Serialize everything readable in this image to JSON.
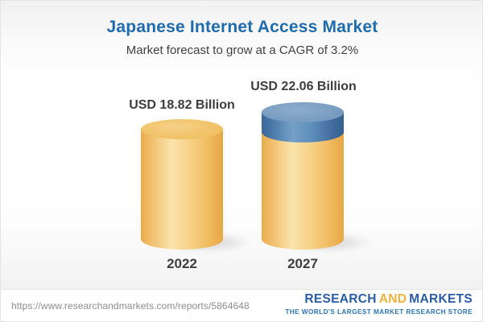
{
  "header": {
    "title": "Japanese Internet Access Market",
    "subtitle": "Market forecast to grow at a CAGR of 3.2%"
  },
  "chart_data": {
    "type": "bar",
    "style": "3d-cylinder",
    "title": "Japanese Internet Access Market",
    "subtitle": "Market forecast to grow at a CAGR of 3.2%",
    "unit": "USD Billion",
    "cagr_percent": 3.2,
    "categories": [
      "2022",
      "2027"
    ],
    "values": [
      18.82,
      22.06
    ],
    "bars": [
      {
        "year": "2022",
        "value": 18.82,
        "value_label": "USD 18.82 Billion",
        "segments": [
          "base"
        ]
      },
      {
        "year": "2027",
        "value": 22.06,
        "value_label": "USD 22.06 Billion",
        "segments": [
          "base",
          "growth"
        ]
      }
    ],
    "colors": {
      "base_fill": "#f3c96e",
      "growth_fill": "#5e8fbd",
      "title_text": "#1e6bad",
      "label_text": "#3d3d3d"
    },
    "legend": "none",
    "grid": false
  },
  "footer": {
    "url": "https://www.researchandmarkets.com/reports/5864648",
    "logo": {
      "part1": "RESEARCH",
      "part2": "AND",
      "part3": "MARKETS",
      "tagline": "THE WORLD'S LARGEST MARKET RESEARCH STORE"
    }
  }
}
